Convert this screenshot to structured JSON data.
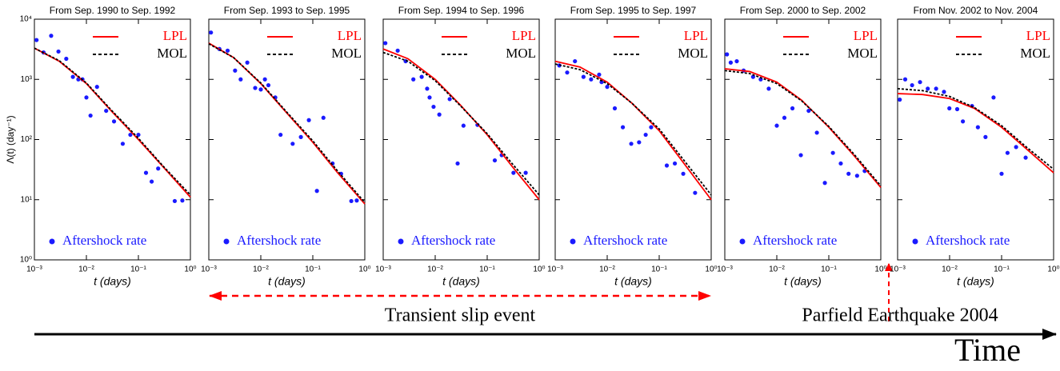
{
  "chart_data": [
    {
      "type": "scatter",
      "title": "From Sep. 1990 to Sep. 1992",
      "xlabel": "t  (days)",
      "ylabel": "Λ(t)  (day⁻¹)",
      "log_x": true,
      "log_y": true,
      "show_ytick_labels": true,
      "xlim": [
        0.001,
        1
      ],
      "ylim": [
        1,
        10000
      ],
      "xticks": [
        {
          "value": 0.001,
          "label": "10⁻³"
        },
        {
          "value": 0.01,
          "label": "10⁻²"
        },
        {
          "value": 0.1,
          "label": "10⁻¹"
        },
        {
          "value": 1,
          "label": "10⁰"
        }
      ],
      "yticks": [
        {
          "value": 1,
          "label": "10⁰"
        },
        {
          "value": 10,
          "label": "10¹"
        },
        {
          "value": 100,
          "label": "10²"
        },
        {
          "value": 1000,
          "label": "10³"
        },
        {
          "value": 10000,
          "label": "10⁴"
        }
      ],
      "series": [
        {
          "name": "Aftershock rate",
          "type": "scatter",
          "color": "#1a1aff",
          "x": [
            0.0011,
            0.0015,
            0.0021,
            0.0029,
            0.0041,
            0.0055,
            0.007,
            0.0084,
            0.01,
            0.012,
            0.016,
            0.024,
            0.034,
            0.05,
            0.07,
            0.1,
            0.14,
            0.18,
            0.24,
            0.5,
            0.7
          ],
          "values": [
            4500,
            2800,
            5300,
            2900,
            2200,
            1100,
            1000,
            1000,
            500,
            250,
            750,
            300,
            200,
            85,
            120,
            120,
            28,
            20,
            33,
            9.5,
            9.7
          ]
        },
        {
          "name": "LPL",
          "type": "line",
          "linestyle": "solid",
          "color": "#ff0000",
          "x": [
            0.001,
            0.003,
            0.01,
            0.03,
            0.1,
            0.3,
            1
          ],
          "values": [
            3300,
            2000,
            850,
            300,
            100,
            35,
            11
          ]
        },
        {
          "name": "MOL",
          "type": "line",
          "linestyle": "dashed",
          "color": "#000000",
          "x": [
            0.001,
            0.003,
            0.01,
            0.03,
            0.1,
            0.3,
            1
          ],
          "values": [
            3300,
            2050,
            870,
            310,
            105,
            36,
            12
          ]
        }
      ]
    },
    {
      "type": "scatter",
      "title": "From Sep. 1993 to Sep. 1995",
      "xlabel": "t  (days)",
      "log_x": true,
      "log_y": true,
      "show_ytick_labels": false,
      "xlim": [
        0.001,
        1
      ],
      "ylim": [
        1,
        10000
      ],
      "xticks": [
        {
          "value": 0.001,
          "label": "10⁻³"
        },
        {
          "value": 0.01,
          "label": "10⁻²"
        },
        {
          "value": 0.1,
          "label": "10⁻¹"
        },
        {
          "value": 1,
          "label": "10⁰"
        }
      ],
      "yticks": [
        1,
        10,
        100,
        1000,
        10000
      ],
      "series": [
        {
          "name": "Aftershock rate",
          "type": "scatter",
          "color": "#1a1aff",
          "x": [
            0.0011,
            0.0016,
            0.0023,
            0.0032,
            0.0041,
            0.0055,
            0.0078,
            0.01,
            0.012,
            0.014,
            0.019,
            0.024,
            0.041,
            0.059,
            0.084,
            0.12,
            0.16,
            0.24,
            0.35,
            0.55,
            0.7
          ],
          "values": [
            6000,
            3200,
            3000,
            1400,
            1000,
            1900,
            720,
            680,
            1000,
            800,
            500,
            120,
            85,
            110,
            210,
            14,
            230,
            40,
            27,
            9.5,
            9.7
          ]
        },
        {
          "name": "LPL",
          "type": "line",
          "linestyle": "solid",
          "color": "#ff0000",
          "x": [
            0.001,
            0.003,
            0.01,
            0.03,
            0.1,
            0.3,
            1
          ],
          "values": [
            4000,
            2300,
            850,
            290,
            90,
            28,
            8.5
          ]
        },
        {
          "name": "MOL",
          "type": "line",
          "linestyle": "dashed",
          "color": "#000000",
          "x": [
            0.001,
            0.003,
            0.01,
            0.03,
            0.1,
            0.3,
            1
          ],
          "values": [
            3900,
            2300,
            870,
            300,
            95,
            30,
            9
          ]
        }
      ]
    },
    {
      "type": "scatter",
      "title": "From Sep. 1994 to Sep. 1996",
      "xlabel": "t  (days)",
      "log_x": true,
      "log_y": true,
      "show_ytick_labels": false,
      "xlim": [
        0.001,
        1
      ],
      "ylim": [
        1,
        10000
      ],
      "xticks": [
        {
          "value": 0.001,
          "label": "10⁻³"
        },
        {
          "value": 0.01,
          "label": "10⁻²"
        },
        {
          "value": 0.1,
          "label": "10⁻¹"
        },
        {
          "value": 1,
          "label": "10⁰"
        }
      ],
      "yticks": [
        1,
        10,
        100,
        1000,
        10000
      ],
      "series": [
        {
          "name": "Aftershock rate",
          "type": "scatter",
          "color": "#1a1aff",
          "x": [
            0.0011,
            0.0019,
            0.0027,
            0.0038,
            0.0055,
            0.007,
            0.0078,
            0.0093,
            0.012,
            0.019,
            0.027,
            0.035,
            0.065,
            0.14,
            0.19,
            0.32,
            0.55
          ],
          "values": [
            4000,
            3000,
            2000,
            1000,
            1100,
            700,
            500,
            350,
            260,
            470,
            40,
            170,
            175,
            45,
            55,
            28,
            28
          ]
        },
        {
          "name": "LPL",
          "type": "line",
          "linestyle": "solid",
          "color": "#ff0000",
          "x": [
            0.001,
            0.003,
            0.01,
            0.03,
            0.1,
            0.3,
            1
          ],
          "values": [
            3200,
            2200,
            1000,
            380,
            120,
            36,
            10
          ]
        },
        {
          "name": "MOL",
          "type": "line",
          "linestyle": "dashed",
          "color": "#000000",
          "x": [
            0.001,
            0.003,
            0.01,
            0.03,
            0.1,
            0.3,
            1
          ],
          "values": [
            2800,
            2000,
            950,
            370,
            125,
            40,
            12
          ]
        }
      ]
    },
    {
      "type": "scatter",
      "title": "From Sep. 1995 to Sep. 1997",
      "xlabel": "t  (days)",
      "log_x": true,
      "log_y": true,
      "show_ytick_labels": false,
      "xlim": [
        0.001,
        1
      ],
      "ylim": [
        1,
        10000
      ],
      "xticks": [
        {
          "value": 0.001,
          "label": "10⁻³"
        },
        {
          "value": 0.01,
          "label": "10⁻²"
        },
        {
          "value": 0.1,
          "label": "10⁻¹"
        },
        {
          "value": 1,
          "label": "10⁰"
        }
      ],
      "yticks": [
        1,
        10,
        100,
        1000,
        10000
      ],
      "series": [
        {
          "name": "Aftershock rate",
          "type": "scatter",
          "color": "#1a1aff",
          "x": [
            0.0012,
            0.0017,
            0.0024,
            0.0035,
            0.0049,
            0.007,
            0.0078,
            0.01,
            0.014,
            0.02,
            0.029,
            0.041,
            0.055,
            0.07,
            0.14,
            0.2,
            0.29,
            0.49
          ],
          "values": [
            1700,
            1300,
            2000,
            1100,
            1000,
            1200,
            900,
            750,
            330,
            160,
            85,
            90,
            120,
            160,
            37,
            40,
            27,
            13
          ]
        },
        {
          "name": "LPL",
          "type": "line",
          "linestyle": "solid",
          "color": "#ff0000",
          "x": [
            0.001,
            0.003,
            0.01,
            0.03,
            0.1,
            0.3,
            1
          ],
          "values": [
            2000,
            1600,
            900,
            400,
            140,
            40,
            10
          ]
        },
        {
          "name": "MOL",
          "type": "line",
          "linestyle": "dashed",
          "color": "#000000",
          "x": [
            0.001,
            0.003,
            0.01,
            0.03,
            0.1,
            0.3,
            1
          ],
          "values": [
            1800,
            1450,
            850,
            400,
            150,
            45,
            12
          ]
        }
      ]
    },
    {
      "type": "scatter",
      "title": "From Sep. 2000 to Sep. 2002",
      "xlabel": "t  (days)",
      "log_x": true,
      "log_y": true,
      "show_ytick_labels": false,
      "xlim": [
        0.001,
        1
      ],
      "ylim": [
        1,
        10000
      ],
      "xticks": [
        {
          "value": 0.001,
          "label": "10⁻³"
        },
        {
          "value": 0.01,
          "label": "10⁻²"
        },
        {
          "value": 0.1,
          "label": "10⁻¹"
        },
        {
          "value": 1,
          "label": "10⁰"
        }
      ],
      "yticks": [
        1,
        10,
        100,
        1000,
        10000
      ],
      "series": [
        {
          "name": "Aftershock rate",
          "type": "scatter",
          "color": "#1a1aff",
          "x": [
            0.0011,
            0.0013,
            0.0017,
            0.0023,
            0.0035,
            0.0049,
            0.007,
            0.01,
            0.014,
            0.02,
            0.029,
            0.041,
            0.059,
            0.084,
            0.12,
            0.17,
            0.24,
            0.35,
            0.49
          ],
          "values": [
            2600,
            1900,
            2000,
            1400,
            1100,
            1000,
            700,
            170,
            230,
            330,
            55,
            300,
            130,
            19,
            60,
            40,
            27,
            25,
            30
          ]
        },
        {
          "name": "LPL",
          "type": "line",
          "linestyle": "solid",
          "color": "#ff0000",
          "x": [
            0.001,
            0.003,
            0.01,
            0.03,
            0.1,
            0.3,
            1
          ],
          "values": [
            1500,
            1350,
            900,
            450,
            160,
            55,
            16
          ]
        },
        {
          "name": "MOL",
          "type": "line",
          "linestyle": "dashed",
          "color": "#000000",
          "x": [
            0.001,
            0.003,
            0.01,
            0.03,
            0.1,
            0.3,
            1
          ],
          "values": [
            1400,
            1250,
            850,
            440,
            165,
            58,
            17
          ]
        }
      ]
    },
    {
      "type": "scatter",
      "title": "From Nov. 2002 to Nov. 2004",
      "xlabel": "t  (days)",
      "log_x": true,
      "log_y": true,
      "show_ytick_labels": false,
      "xlim": [
        0.001,
        1
      ],
      "ylim": [
        1,
        10000
      ],
      "xticks": [
        {
          "value": 0.001,
          "label": "10⁻³"
        },
        {
          "value": 0.01,
          "label": "10⁻²"
        },
        {
          "value": 0.1,
          "label": "10⁻¹"
        },
        {
          "value": 1,
          "label": "10⁰"
        }
      ],
      "yticks": [
        1,
        10,
        100,
        1000,
        10000
      ],
      "series": [
        {
          "name": "Aftershock rate",
          "type": "scatter",
          "color": "#1a1aff",
          "x": [
            0.0011,
            0.0014,
            0.0019,
            0.0027,
            0.0038,
            0.0055,
            0.0078,
            0.0099,
            0.014,
            0.018,
            0.027,
            0.035,
            0.049,
            0.07,
            0.1,
            0.13,
            0.19,
            0.29
          ],
          "values": [
            460,
            1000,
            800,
            900,
            700,
            700,
            620,
            330,
            320,
            200,
            360,
            160,
            110,
            500,
            27,
            60,
            75,
            50
          ]
        },
        {
          "name": "LPL",
          "type": "line",
          "linestyle": "solid",
          "color": "#ff0000",
          "x": [
            0.001,
            0.003,
            0.01,
            0.03,
            0.1,
            0.3,
            1
          ],
          "values": [
            580,
            560,
            480,
            330,
            160,
            70,
            28
          ]
        },
        {
          "name": "MOL",
          "type": "line",
          "linestyle": "dashed",
          "color": "#000000",
          "x": [
            0.001,
            0.003,
            0.01,
            0.03,
            0.1,
            0.3,
            1
          ],
          "values": [
            700,
            650,
            520,
            340,
            170,
            75,
            32
          ]
        }
      ]
    }
  ],
  "annotations": {
    "transient": "Transient slip event",
    "earthquake": "Parfield Earthquake 2004",
    "time": "Time"
  }
}
